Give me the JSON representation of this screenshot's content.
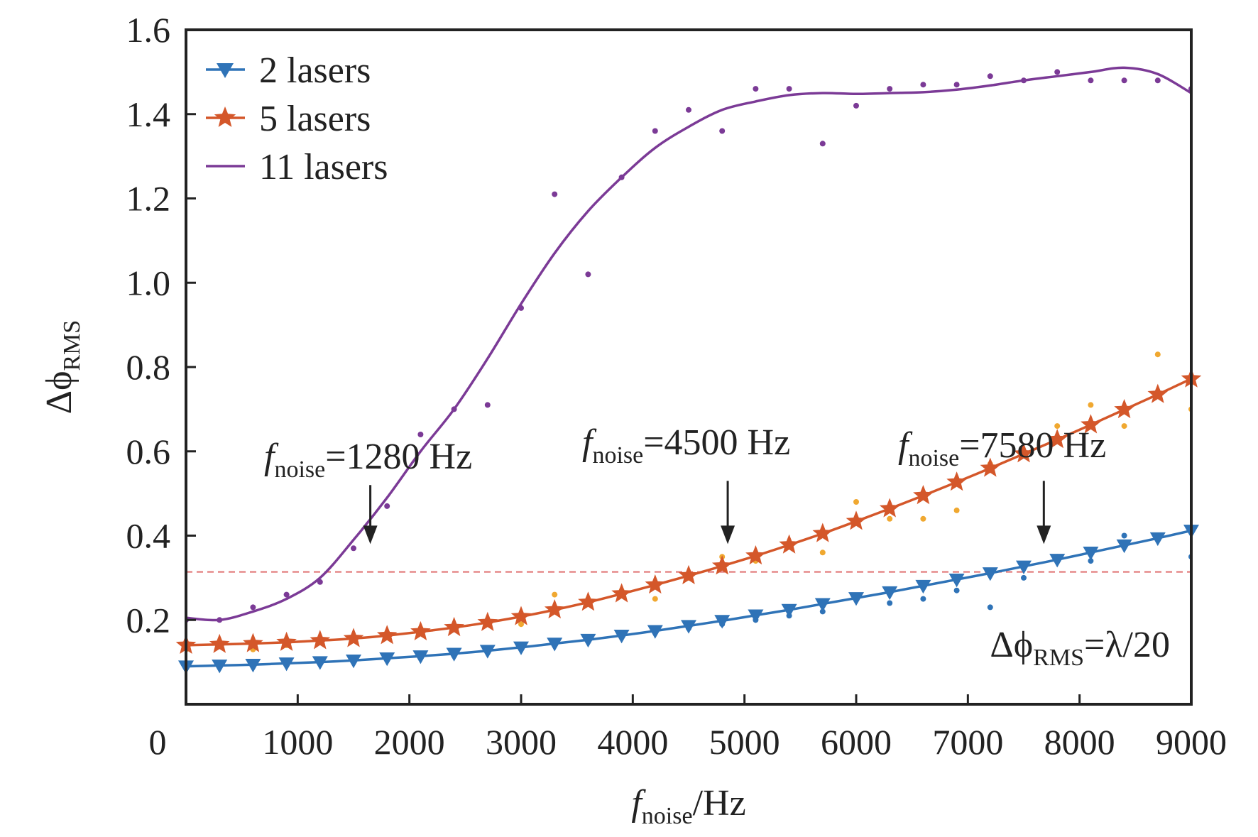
{
  "chart_data": {
    "type": "line",
    "xlabel": {
      "main": "f",
      "sub": "noise",
      "unit": "/Hz"
    },
    "ylabel": {
      "main": "Δϕ",
      "sub": "RMS"
    },
    "xlim": [
      0,
      9000
    ],
    "ylim": [
      0,
      1.6
    ],
    "x_ticks": [
      0,
      1000,
      2000,
      3000,
      4000,
      5000,
      6000,
      7000,
      8000,
      9000
    ],
    "x_tick_labels": [
      "0",
      "1000",
      "2000",
      "3000",
      "4000",
      "5000",
      "6000",
      "7000",
      "8000",
      "9000"
    ],
    "y_ticks": [
      0.2,
      0.4,
      0.6,
      0.8,
      1.0,
      1.2,
      1.4,
      1.6
    ],
    "y_tick_labels": [
      "0.2",
      "0.4",
      "0.6",
      "0.8",
      "1.0",
      "1.2",
      "1.4",
      "1.6"
    ],
    "grid": false,
    "legend": {
      "position": "top-left"
    },
    "series": [
      {
        "name": "2 lasers",
        "color": "#2f73b7",
        "marker": "triangle-down",
        "x": [
          0,
          300,
          600,
          900,
          1200,
          1500,
          1800,
          2100,
          2400,
          2700,
          3000,
          3300,
          3600,
          3900,
          4200,
          4500,
          4800,
          5100,
          5400,
          5700,
          6000,
          6300,
          6600,
          6900,
          7200,
          7500,
          7800,
          8100,
          8400,
          8700,
          9000
        ],
        "fit": [
          0.09,
          0.092,
          0.094,
          0.097,
          0.1,
          0.104,
          0.109,
          0.114,
          0.12,
          0.127,
          0.135,
          0.144,
          0.153,
          0.163,
          0.174,
          0.186,
          0.198,
          0.211,
          0.224,
          0.238,
          0.252,
          0.266,
          0.281,
          0.296,
          0.311,
          0.327,
          0.343,
          0.36,
          0.377,
          0.394,
          0.412
        ],
        "points": [
          0.09,
          0.088,
          0.09,
          0.094,
          0.098,
          0.1,
          0.105,
          0.11,
          0.115,
          0.125,
          0.132,
          0.14,
          0.15,
          0.16,
          0.17,
          0.18,
          0.19,
          0.2,
          0.21,
          0.22,
          0.25,
          0.24,
          0.25,
          0.27,
          0.23,
          0.3,
          0.35,
          0.34,
          0.4,
          0.39,
          0.35
        ]
      },
      {
        "name": "5 lasers",
        "color": "#d4572a",
        "marker": "star",
        "x": [
          0,
          300,
          600,
          900,
          1200,
          1500,
          1800,
          2100,
          2400,
          2700,
          3000,
          3300,
          3600,
          3900,
          4200,
          4500,
          4800,
          5100,
          5400,
          5700,
          6000,
          6300,
          6600,
          6900,
          7200,
          7500,
          7800,
          8100,
          8400,
          8700,
          9000
        ],
        "fit": [
          0.14,
          0.142,
          0.144,
          0.147,
          0.151,
          0.156,
          0.163,
          0.172,
          0.182,
          0.194,
          0.208,
          0.224,
          0.242,
          0.262,
          0.283,
          0.305,
          0.328,
          0.352,
          0.378,
          0.405,
          0.434,
          0.464,
          0.495,
          0.527,
          0.56,
          0.594,
          0.628,
          0.663,
          0.699,
          0.735,
          0.772
        ],
        "points": [
          0.13,
          0.14,
          0.13,
          0.14,
          0.15,
          0.16,
          0.17,
          0.18,
          0.18,
          0.2,
          0.19,
          0.26,
          0.25,
          0.27,
          0.25,
          0.3,
          0.35,
          0.34,
          0.38,
          0.36,
          0.48,
          0.44,
          0.44,
          0.46,
          0.57,
          0.6,
          0.66,
          0.71,
          0.66,
          0.83,
          0.7
        ]
      },
      {
        "name": "11 lasers",
        "color": "#7b3a96",
        "marker": "none",
        "x": [
          0,
          300,
          600,
          900,
          1200,
          1500,
          1800,
          2100,
          2400,
          2700,
          3000,
          3300,
          3600,
          3900,
          4200,
          4500,
          4800,
          5100,
          5400,
          5700,
          6000,
          6300,
          6600,
          6900,
          7200,
          7500,
          7800,
          8100,
          8400,
          8700,
          9000
        ],
        "fit": [
          0.205,
          0.2,
          0.22,
          0.25,
          0.3,
          0.39,
          0.49,
          0.6,
          0.7,
          0.82,
          0.95,
          1.07,
          1.17,
          1.25,
          1.32,
          1.37,
          1.41,
          1.43,
          1.445,
          1.45,
          1.448,
          1.45,
          1.452,
          1.458,
          1.468,
          1.48,
          1.49,
          1.5,
          1.51,
          1.495,
          1.45
        ],
        "points": [
          0.2,
          0.2,
          0.23,
          0.26,
          0.29,
          0.37,
          0.47,
          0.64,
          0.7,
          0.71,
          0.94,
          1.21,
          1.02,
          1.25,
          1.36,
          1.41,
          1.36,
          1.46,
          1.46,
          1.33,
          1.42,
          1.46,
          1.47,
          1.47,
          1.49,
          1.48,
          1.5,
          1.48,
          1.48,
          1.48,
          1.46
        ]
      }
    ],
    "threshold": {
      "y": 0.314,
      "color": "#e07070",
      "label": {
        "main": "Δϕ",
        "sub": "RMS",
        "rest": "=λ/20"
      }
    },
    "annotations": [
      {
        "main": "f",
        "sub": "noise",
        "rest": "=1280 Hz",
        "arrow_x": 1650,
        "arrow_y_from": 0.52,
        "arrow_y_to": 0.38
      },
      {
        "main": "f",
        "sub": "noise",
        "rest": "=4500 Hz",
        "arrow_x": 4850,
        "arrow_y_from": 0.53,
        "arrow_y_to": 0.38
      },
      {
        "main": "f",
        "sub": "noise",
        "rest": "=7580 Hz",
        "arrow_x": 7680,
        "arrow_y_from": 0.53,
        "arrow_y_to": 0.38
      }
    ]
  }
}
